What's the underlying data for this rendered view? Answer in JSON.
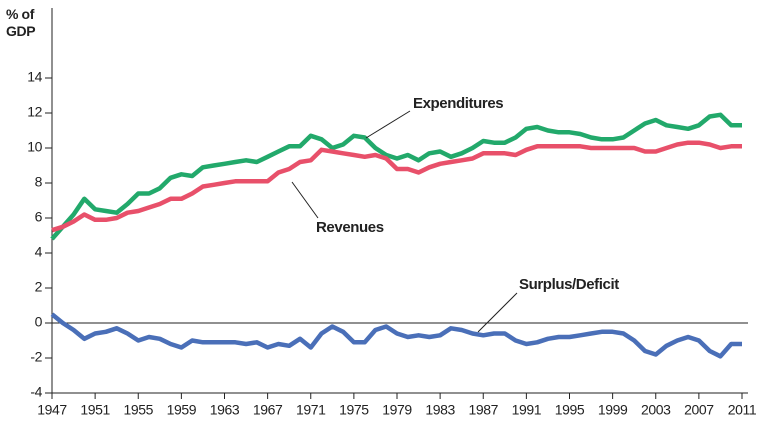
{
  "chart_data": {
    "type": "line",
    "y_label": "% of GDP",
    "x": [
      1947,
      1948,
      1949,
      1950,
      1951,
      1952,
      1953,
      1954,
      1955,
      1956,
      1957,
      1958,
      1959,
      1960,
      1961,
      1962,
      1963,
      1964,
      1965,
      1966,
      1967,
      1968,
      1969,
      1970,
      1971,
      1972,
      1973,
      1974,
      1975,
      1976,
      1977,
      1978,
      1979,
      1980,
      1981,
      1982,
      1983,
      1984,
      1985,
      1986,
      1987,
      1988,
      1989,
      1990,
      1991,
      1992,
      1993,
      1994,
      1995,
      1996,
      1997,
      1998,
      1999,
      2000,
      2001,
      2002,
      2003,
      2004,
      2005,
      2006,
      2007,
      2008,
      2009,
      2010,
      2011
    ],
    "series": [
      {
        "name": "Expenditures",
        "color": "#22a96b",
        "values": [
          4.8,
          5.5,
          6.2,
          7.1,
          6.5,
          6.4,
          6.3,
          6.8,
          7.4,
          7.4,
          7.7,
          8.3,
          8.5,
          8.4,
          8.9,
          9.0,
          9.1,
          9.2,
          9.3,
          9.2,
          9.5,
          9.8,
          10.1,
          10.1,
          10.7,
          10.5,
          10.0,
          10.2,
          10.7,
          10.6,
          10.0,
          9.6,
          9.4,
          9.6,
          9.3,
          9.7,
          9.8,
          9.5,
          9.7,
          10.0,
          10.4,
          10.3,
          10.3,
          10.6,
          11.1,
          11.2,
          11.0,
          10.9,
          10.9,
          10.8,
          10.6,
          10.5,
          10.5,
          10.6,
          11.0,
          11.4,
          11.6,
          11.3,
          11.2,
          11.1,
          11.3,
          11.8,
          11.9,
          11.3,
          11.3
        ]
      },
      {
        "name": "Revenues",
        "color": "#e8506a",
        "values": [
          5.3,
          5.5,
          5.8,
          6.2,
          5.9,
          5.9,
          6.0,
          6.3,
          6.4,
          6.6,
          6.8,
          7.1,
          7.1,
          7.4,
          7.8,
          7.9,
          8.0,
          8.1,
          8.1,
          8.1,
          8.1,
          8.6,
          8.8,
          9.2,
          9.3,
          9.9,
          9.8,
          9.7,
          9.6,
          9.5,
          9.6,
          9.4,
          8.8,
          8.8,
          8.6,
          8.9,
          9.1,
          9.2,
          9.3,
          9.4,
          9.7,
          9.7,
          9.7,
          9.6,
          9.9,
          10.1,
          10.1,
          10.1,
          10.1,
          10.1,
          10.0,
          10.0,
          10.0,
          10.0,
          10.0,
          9.8,
          9.8,
          10.0,
          10.2,
          10.3,
          10.3,
          10.2,
          10.0,
          10.1,
          10.1
        ]
      },
      {
        "name": "Surplus/Deficit",
        "color": "#4a6fb8",
        "values": [
          0.5,
          0.0,
          -0.4,
          -0.9,
          -0.6,
          -0.5,
          -0.3,
          -0.6,
          -1.0,
          -0.8,
          -0.9,
          -1.2,
          -1.4,
          -1.0,
          -1.1,
          -1.1,
          -1.1,
          -1.1,
          -1.2,
          -1.1,
          -1.4,
          -1.2,
          -1.3,
          -0.9,
          -1.4,
          -0.6,
          -0.2,
          -0.5,
          -1.1,
          -1.1,
          -0.4,
          -0.2,
          -0.6,
          -0.8,
          -0.7,
          -0.8,
          -0.7,
          -0.3,
          -0.4,
          -0.6,
          -0.7,
          -0.6,
          -0.6,
          -1.0,
          -1.2,
          -1.1,
          -0.9,
          -0.8,
          -0.8,
          -0.7,
          -0.6,
          -0.5,
          -0.5,
          -0.6,
          -1.0,
          -1.6,
          -1.8,
          -1.3,
          -1.0,
          -0.8,
          -1.0,
          -1.6,
          -1.9,
          -1.2,
          -1.2
        ]
      }
    ],
    "xlim": [
      1947,
      2011
    ],
    "xticks": [
      1947,
      1951,
      1955,
      1959,
      1963,
      1967,
      1971,
      1975,
      1979,
      1983,
      1987,
      1991,
      1995,
      1999,
      2003,
      2007,
      2011
    ],
    "ylim": [
      -4,
      14
    ],
    "yticks": [
      -4,
      -2,
      0,
      2,
      4,
      6,
      8,
      10,
      12,
      14
    ],
    "zero_line": true,
    "grid": false
  }
}
